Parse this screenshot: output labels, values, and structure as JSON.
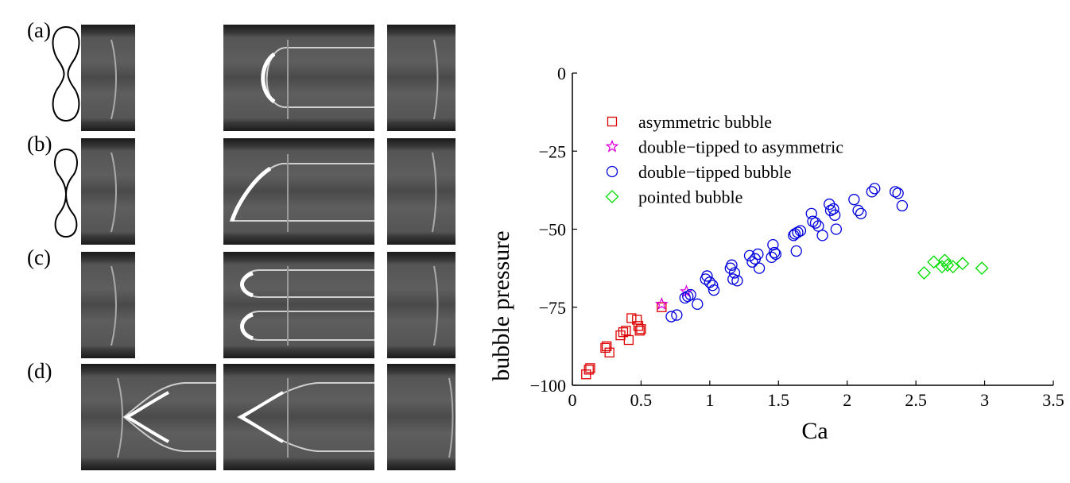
{
  "panels": {
    "labels": [
      "(a)",
      "(b)",
      "(c)",
      "(d)"
    ]
  },
  "chart_data": {
    "type": "scatter",
    "xlabel": "Ca",
    "ylabel": "bubble pressure",
    "xlim": [
      0,
      3.5
    ],
    "ylim": [
      -100,
      0
    ],
    "xticks": [
      0,
      0.5,
      1,
      1.5,
      2,
      2.5,
      3,
      3.5
    ],
    "xtick_labels": [
      "0",
      "0.5",
      "1",
      "1.5",
      "2",
      "2.5",
      "3",
      "3.5"
    ],
    "yticks": [
      0,
      -25,
      -50,
      -75,
      -100
    ],
    "ytick_labels": [
      "0",
      "−25",
      "−50",
      "−75",
      "−100"
    ],
    "grid": false,
    "legend_position": "top-left",
    "series": [
      {
        "name": "asymmetric bubble",
        "marker": "square",
        "color": "#dd0000",
        "points": [
          [
            0.1,
            -96.5
          ],
          [
            0.12,
            -95.0
          ],
          [
            0.13,
            -94.5
          ],
          [
            0.24,
            -88.0
          ],
          [
            0.25,
            -87.5
          ],
          [
            0.27,
            -89.5
          ],
          [
            0.35,
            -84.0
          ],
          [
            0.37,
            -83.0
          ],
          [
            0.39,
            -82.5
          ],
          [
            0.41,
            -85.5
          ],
          [
            0.43,
            -78.5
          ],
          [
            0.47,
            -79.0
          ],
          [
            0.48,
            -81.0
          ],
          [
            0.49,
            -82.5
          ],
          [
            0.5,
            -82.0
          ],
          [
            0.65,
            -75.0
          ]
        ]
      },
      {
        "name": "double−tipped to asymmetric",
        "marker": "star",
        "color": "#dd00dd",
        "points": [
          [
            0.65,
            -74.0
          ],
          [
            0.83,
            -70.0
          ]
        ]
      },
      {
        "name": "double−tipped bubble",
        "marker": "circle",
        "color": "#0000dd",
        "points": [
          [
            0.82,
            -72.0
          ],
          [
            0.84,
            -71.5
          ],
          [
            0.86,
            -71.0
          ],
          [
            0.72,
            -78.0
          ],
          [
            0.76,
            -77.5
          ],
          [
            0.91,
            -74.0
          ],
          [
            0.97,
            -66.0
          ],
          [
            0.98,
            -65.0
          ],
          [
            1.0,
            -67.0
          ],
          [
            1.02,
            -68.0
          ],
          [
            1.03,
            -69.5
          ],
          [
            1.15,
            -62.5
          ],
          [
            1.16,
            -61.5
          ],
          [
            1.17,
            -66.0
          ],
          [
            1.18,
            -64.0
          ],
          [
            1.2,
            -66.5
          ],
          [
            1.29,
            -58.5
          ],
          [
            1.31,
            -60.5
          ],
          [
            1.33,
            -59.5
          ],
          [
            1.35,
            -58.0
          ],
          [
            1.36,
            -62.5
          ],
          [
            1.45,
            -59.0
          ],
          [
            1.46,
            -55.0
          ],
          [
            1.47,
            -57.5
          ],
          [
            1.48,
            -58.0
          ],
          [
            1.61,
            -52.0
          ],
          [
            1.62,
            -51.5
          ],
          [
            1.63,
            -57.0
          ],
          [
            1.64,
            -51.0
          ],
          [
            1.66,
            -50.5
          ],
          [
            1.74,
            -45.0
          ],
          [
            1.75,
            -47.5
          ],
          [
            1.77,
            -48.0
          ],
          [
            1.79,
            -49.0
          ],
          [
            1.82,
            -52.0
          ],
          [
            1.87,
            -42.0
          ],
          [
            1.88,
            -44.0
          ],
          [
            1.9,
            -43.5
          ],
          [
            1.91,
            -45.5
          ],
          [
            1.92,
            -50.0
          ],
          [
            2.05,
            -40.5
          ],
          [
            2.08,
            -44.0
          ],
          [
            2.1,
            -45.0
          ],
          [
            2.18,
            -38.0
          ],
          [
            2.2,
            -37.0
          ],
          [
            2.35,
            -38.0
          ],
          [
            2.37,
            -38.5
          ],
          [
            2.4,
            -42.5
          ]
        ]
      },
      {
        "name": "pointed bubble",
        "marker": "diamond",
        "color": "#00dd00",
        "points": [
          [
            2.56,
            -64.0
          ],
          [
            2.63,
            -60.5
          ],
          [
            2.69,
            -62.0
          ],
          [
            2.71,
            -60.0
          ],
          [
            2.73,
            -61.5
          ],
          [
            2.77,
            -62.0
          ],
          [
            2.84,
            -61.0
          ],
          [
            2.98,
            -62.5
          ]
        ]
      }
    ]
  }
}
